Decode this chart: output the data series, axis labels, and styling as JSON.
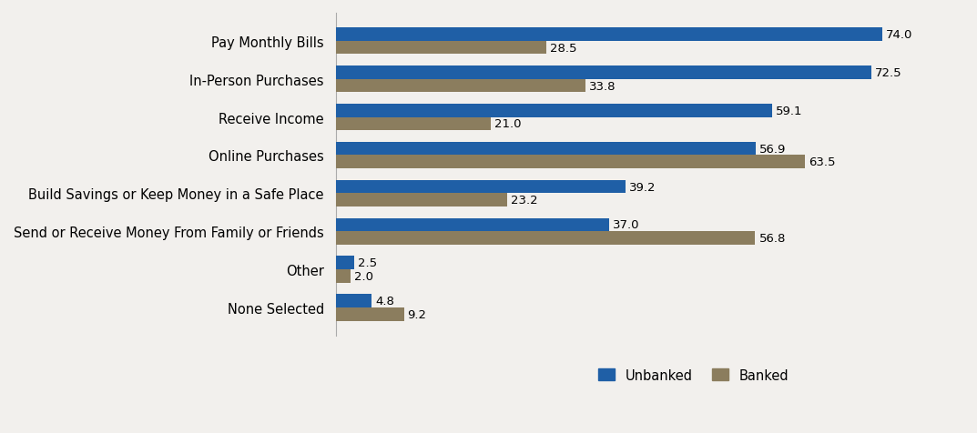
{
  "categories": [
    "Pay Monthly Bills",
    "In-Person Purchases",
    "Receive Income",
    "Online Purchases",
    "Build Savings or Keep Money in a Safe Place",
    "Send or Receive Money From Family or Friends",
    "Other",
    "None Selected"
  ],
  "unbanked": [
    74.0,
    72.5,
    59.1,
    56.9,
    39.2,
    37.0,
    2.5,
    4.8
  ],
  "banked": [
    28.5,
    33.8,
    21.0,
    63.5,
    23.2,
    56.8,
    2.0,
    9.2
  ],
  "unbanked_color": "#1F5FA6",
  "banked_color": "#8B7D5E",
  "background_color": "#F2F0ED",
  "bar_height": 0.35,
  "xlim": [
    0,
    85
  ],
  "legend_labels": [
    "Unbanked",
    "Banked"
  ],
  "label_fontsize": 10.5,
  "tick_fontsize": 10.5,
  "value_fontsize": 9.5
}
